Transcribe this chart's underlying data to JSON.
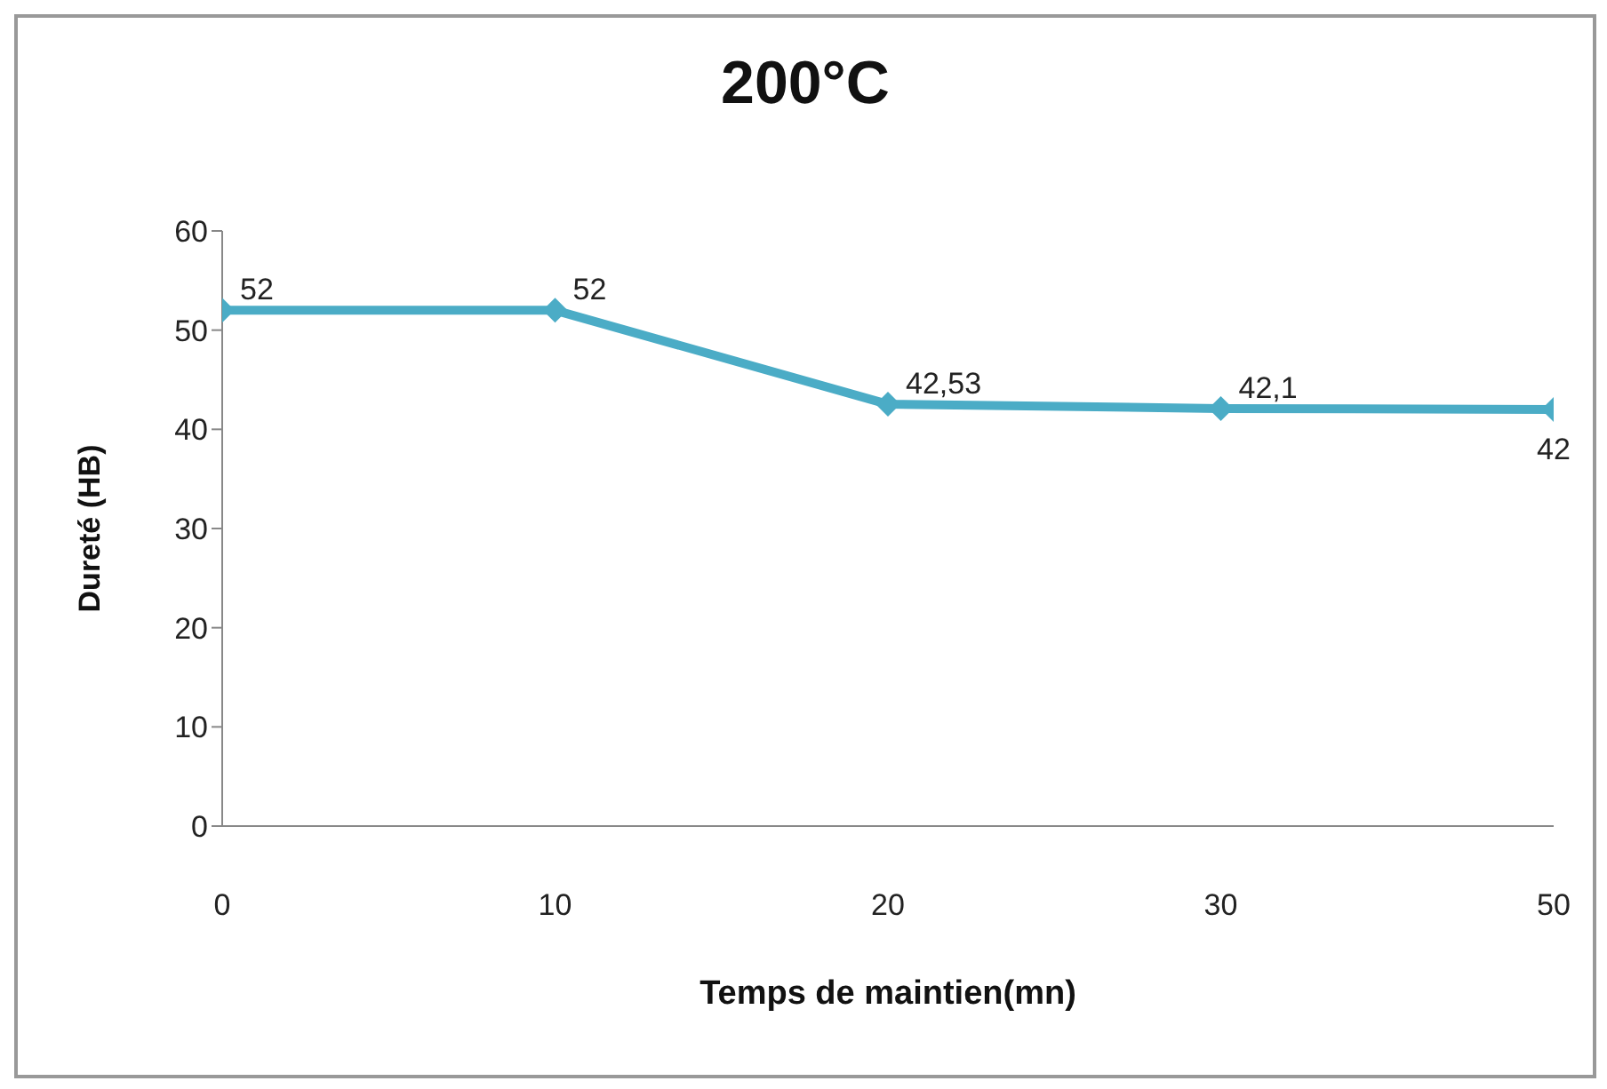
{
  "chart_data": {
    "type": "line",
    "title": "200°C",
    "xlabel": "Temps de maintien(mn)",
    "ylabel": "Dureté (HB)",
    "categories": [
      "0",
      "10",
      "20",
      "30",
      "50"
    ],
    "values": [
      52,
      52,
      42.53,
      42.1,
      42
    ],
    "value_labels": [
      "52",
      "52",
      "42,53",
      "42,1",
      "42"
    ],
    "color": "#4bacc6",
    "marker": "diamond",
    "ylim": [
      0,
      60
    ],
    "yticks": [
      0,
      10,
      20,
      30,
      40,
      50,
      60
    ],
    "grid": false
  }
}
